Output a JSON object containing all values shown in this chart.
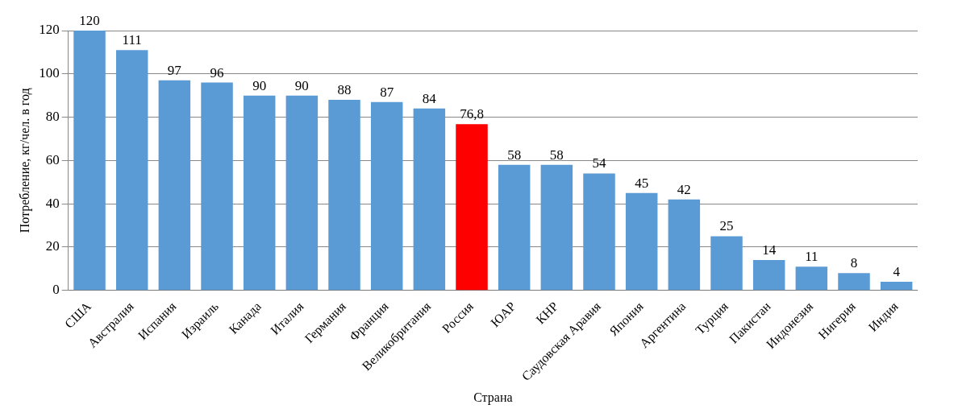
{
  "chart_data": {
    "type": "bar",
    "xlabel": "Страна",
    "ylabel": "Потребление, кг/чел. в год",
    "categories": [
      "США",
      "Австралия",
      "Испания",
      "Израиль",
      "Канада",
      "Италия",
      "Германия",
      "Франция",
      "Великобритания",
      "Россия",
      "ЮАР",
      "КНР",
      "Саудовская Аравия",
      "Япония",
      "Аргентина",
      "Турция",
      "Пакистан",
      "Индонезия",
      "Нигерия",
      "Индия"
    ],
    "values": [
      120,
      111,
      97,
      96,
      90,
      90,
      88,
      87,
      84,
      76.8,
      58,
      58,
      54,
      45,
      42,
      25,
      14,
      11,
      8,
      4
    ],
    "value_labels": [
      "120",
      "111",
      "97",
      "96",
      "90",
      "90",
      "88",
      "87",
      "84",
      "76,8",
      "58",
      "58",
      "54",
      "45",
      "42",
      "25",
      "14",
      "11",
      "8",
      "4"
    ],
    "colors": [
      "#5b9bd5",
      "#5b9bd5",
      "#5b9bd5",
      "#5b9bd5",
      "#5b9bd5",
      "#5b9bd5",
      "#5b9bd5",
      "#5b9bd5",
      "#5b9bd5",
      "#ff0000",
      "#5b9bd5",
      "#5b9bd5",
      "#5b9bd5",
      "#5b9bd5",
      "#5b9bd5",
      "#5b9bd5",
      "#5b9bd5",
      "#5b9bd5",
      "#5b9bd5",
      "#5b9bd5"
    ],
    "ylim": [
      0,
      120
    ],
    "yticks": [
      0,
      20,
      40,
      60,
      80,
      100,
      120
    ],
    "grid": "y",
    "legend": false
  }
}
